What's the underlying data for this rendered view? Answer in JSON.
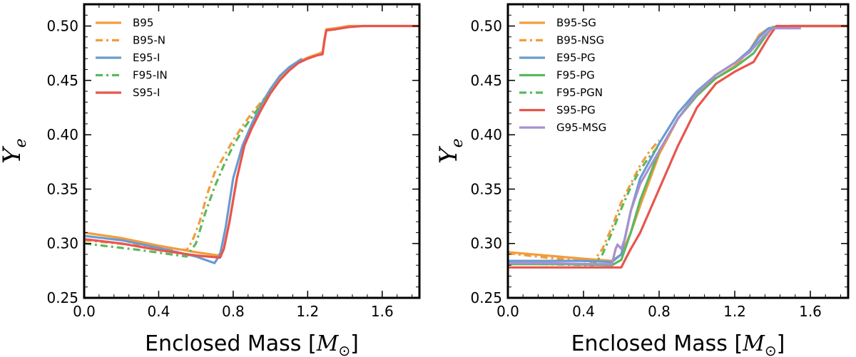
{
  "chart_data": [
    {
      "type": "line",
      "id": "left",
      "xlabel_text": "Enclosed Mass [",
      "xlabel_symbol": "M",
      "xlabel_sub": "⊙",
      "xlabel_close": "]",
      "ylabel_symbol": "Y",
      "ylabel_sub": "e",
      "xlim": [
        0.0,
        1.8
      ],
      "ylim": [
        0.25,
        0.52
      ],
      "xticks": [
        "0.0",
        "0.4",
        "0.8",
        "1.2",
        "1.6"
      ],
      "yticks": [
        "0.25",
        "0.30",
        "0.35",
        "0.40",
        "0.45",
        "0.50"
      ],
      "legend_position": "top-left",
      "series": [
        {
          "name": "B95",
          "color": "#f39c3c",
          "dash": "solid",
          "x": [
            0.0,
            0.2,
            0.4,
            0.6,
            0.72,
            0.75,
            0.78,
            0.82,
            0.86,
            0.9,
            0.95,
            1.0,
            1.05,
            1.1,
            1.15,
            1.2,
            1.25,
            1.28,
            1.29,
            1.3,
            1.35,
            1.42,
            1.5,
            1.8
          ],
          "y": [
            0.31,
            0.305,
            0.298,
            0.292,
            0.289,
            0.295,
            0.32,
            0.36,
            0.39,
            0.408,
            0.425,
            0.44,
            0.452,
            0.461,
            0.467,
            0.471,
            0.474,
            0.476,
            0.488,
            0.497,
            0.498,
            0.5,
            0.5,
            0.5
          ]
        },
        {
          "name": "B95-N",
          "color": "#f39c3c",
          "dash": "dashdot",
          "x": [
            0.0,
            0.3,
            0.55,
            0.58,
            0.62,
            0.66,
            0.7,
            0.75,
            0.8,
            0.85,
            0.9,
            0.95,
            1.0
          ],
          "y": [
            0.303,
            0.298,
            0.294,
            0.302,
            0.32,
            0.345,
            0.365,
            0.38,
            0.395,
            0.408,
            0.42,
            0.43,
            0.44
          ]
        },
        {
          "name": "E95-I",
          "color": "#6a9bd1",
          "dash": "solid",
          "x": [
            0.0,
            0.2,
            0.4,
            0.6,
            0.7,
            0.73,
            0.76,
            0.8,
            0.85,
            0.9,
            0.95,
            1.0,
            1.05,
            1.1,
            1.17
          ],
          "y": [
            0.307,
            0.303,
            0.296,
            0.288,
            0.282,
            0.29,
            0.315,
            0.36,
            0.39,
            0.41,
            0.428,
            0.442,
            0.454,
            0.462,
            0.47
          ]
        },
        {
          "name": "F95-IN",
          "color": "#5cb85c",
          "dash": "dashdot",
          "x": [
            0.0,
            0.3,
            0.55,
            0.6,
            0.65,
            0.7,
            0.75,
            0.8,
            0.85,
            0.9,
            0.95,
            1.0
          ],
          "y": [
            0.3,
            0.294,
            0.288,
            0.3,
            0.328,
            0.352,
            0.372,
            0.39,
            0.404,
            0.416,
            0.428,
            0.438
          ]
        },
        {
          "name": "S95-I",
          "color": "#e8554e",
          "dash": "solid",
          "x": [
            0.0,
            0.2,
            0.4,
            0.6,
            0.73,
            0.75,
            0.78,
            0.82,
            0.86,
            0.9,
            0.95,
            1.0,
            1.05,
            1.1,
            1.15,
            1.2,
            1.25,
            1.28,
            1.29,
            1.3,
            1.35,
            1.42,
            1.5,
            1.8
          ],
          "y": [
            0.304,
            0.3,
            0.294,
            0.289,
            0.287,
            0.295,
            0.32,
            0.36,
            0.39,
            0.406,
            0.423,
            0.438,
            0.45,
            0.459,
            0.466,
            0.47,
            0.473,
            0.474,
            0.486,
            0.496,
            0.497,
            0.499,
            0.5,
            0.5
          ]
        }
      ]
    },
    {
      "type": "line",
      "id": "right",
      "xlabel_text": "Enclosed Mass [",
      "xlabel_symbol": "M",
      "xlabel_sub": "⊙",
      "xlabel_close": "]",
      "ylabel_symbol": "Y",
      "ylabel_sub": "e",
      "xlim": [
        0.0,
        1.8
      ],
      "ylim": [
        0.25,
        0.52
      ],
      "xticks": [
        "0.0",
        "0.4",
        "0.8",
        "1.2",
        "1.6"
      ],
      "yticks": [
        "0.25",
        "0.30",
        "0.35",
        "0.40",
        "0.45",
        "0.50"
      ],
      "legend_position": "top-left",
      "series": [
        {
          "name": "B95-SG",
          "color": "#f39c3c",
          "dash": "solid",
          "x": [
            0.0,
            0.2,
            0.4,
            0.55,
            0.6,
            0.65,
            0.7,
            0.8,
            0.9,
            1.0,
            1.1,
            1.2,
            1.28,
            1.33,
            1.38,
            1.5,
            1.8
          ],
          "y": [
            0.292,
            0.289,
            0.286,
            0.284,
            0.29,
            0.31,
            0.335,
            0.382,
            0.415,
            0.438,
            0.452,
            0.463,
            0.478,
            0.492,
            0.498,
            0.5,
            0.5
          ]
        },
        {
          "name": "B95-NSG",
          "color": "#f39c3c",
          "dash": "dashdot",
          "x": [
            0.0,
            0.2,
            0.45,
            0.5,
            0.55,
            0.6,
            0.65,
            0.7,
            0.75,
            0.8
          ],
          "y": [
            0.291,
            0.287,
            0.283,
            0.295,
            0.315,
            0.338,
            0.355,
            0.372,
            0.385,
            0.395
          ]
        },
        {
          "name": "E95-PG",
          "color": "#6a9bd1",
          "dash": "solid",
          "x": [
            0.0,
            0.2,
            0.4,
            0.55,
            0.6,
            0.65,
            0.7,
            0.8,
            0.9,
            1.0,
            1.1,
            1.2,
            1.28,
            1.33,
            1.38,
            1.5,
            1.8
          ],
          "y": [
            0.284,
            0.284,
            0.284,
            0.283,
            0.29,
            0.33,
            0.36,
            0.392,
            0.42,
            0.44,
            0.455,
            0.466,
            0.478,
            0.49,
            0.498,
            0.5,
            0.5
          ]
        },
        {
          "name": "F95-PG",
          "color": "#5cb85c",
          "dash": "solid",
          "x": [
            0.0,
            0.3,
            0.55,
            0.6,
            0.65,
            0.7,
            0.8,
            0.9,
            1.0,
            1.1,
            1.2,
            1.3,
            1.36,
            1.4,
            1.5,
            1.8
          ],
          "y": [
            0.281,
            0.281,
            0.28,
            0.285,
            0.31,
            0.34,
            0.385,
            0.415,
            0.436,
            0.452,
            0.462,
            0.475,
            0.49,
            0.499,
            0.5,
            0.5
          ]
        },
        {
          "name": "F95-PGN",
          "color": "#5cb85c",
          "dash": "dashdot",
          "x": [
            0.0,
            0.2,
            0.45,
            0.5,
            0.55,
            0.6,
            0.65,
            0.7,
            0.75,
            0.8
          ],
          "y": [
            0.282,
            0.281,
            0.28,
            0.29,
            0.31,
            0.332,
            0.352,
            0.368,
            0.38,
            0.39
          ]
        },
        {
          "name": "S95-PG",
          "color": "#e8554e",
          "dash": "solid",
          "x": [
            0.0,
            0.3,
            0.6,
            0.62,
            0.65,
            0.7,
            0.8,
            0.9,
            1.0,
            1.1,
            1.2,
            1.3,
            1.38,
            1.42,
            1.5,
            1.8
          ],
          "y": [
            0.278,
            0.278,
            0.278,
            0.285,
            0.295,
            0.31,
            0.35,
            0.39,
            0.425,
            0.447,
            0.458,
            0.467,
            0.49,
            0.5,
            0.5,
            0.5
          ]
        },
        {
          "name": "G95-MSG",
          "color": "#a98fd0",
          "dash": "solid",
          "x": [
            0.0,
            0.2,
            0.45,
            0.55,
            0.57,
            0.58,
            0.6,
            0.62,
            0.65,
            0.7,
            0.8,
            0.9,
            1.0,
            1.1,
            1.2,
            1.28,
            1.35,
            1.4,
            1.55
          ],
          "y": [
            0.282,
            0.282,
            0.281,
            0.281,
            0.295,
            0.299,
            0.295,
            0.305,
            0.33,
            0.355,
            0.385,
            0.415,
            0.438,
            0.455,
            0.466,
            0.476,
            0.49,
            0.498,
            0.498
          ]
        }
      ]
    }
  ]
}
